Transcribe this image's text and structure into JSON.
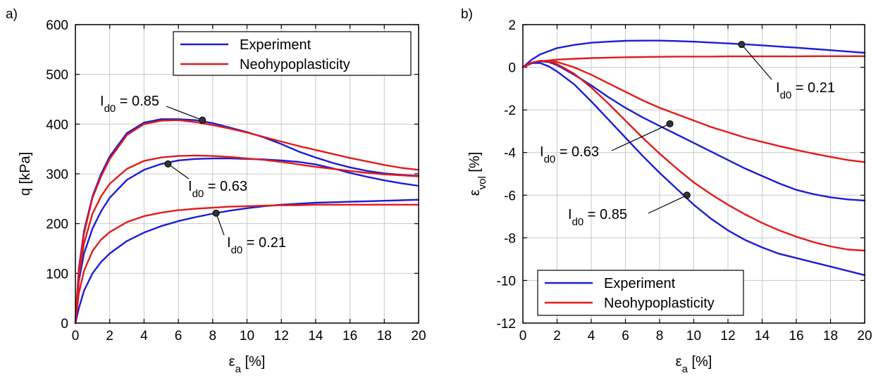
{
  "chart_data": [
    {
      "type": "line",
      "panel_label": "a)",
      "xlabel": "ε",
      "xlabel_sub": "a",
      "xlabel_unit": " [%]",
      "ylabel": "q [kPa]",
      "xlim": [
        0,
        20
      ],
      "ylim": [
        0,
        600
      ],
      "xticks": [
        "0",
        "2",
        "4",
        "6",
        "8",
        "10",
        "12",
        "14",
        "16",
        "18",
        "20"
      ],
      "yticks": [
        "0",
        "100",
        "200",
        "300",
        "400",
        "500",
        "600"
      ],
      "grid": true,
      "legend_position": "top-right",
      "legend": [
        "Experiment",
        "Neohypoplasticity"
      ],
      "colors": {
        "Experiment": "#1c1cd6",
        "Neohypoplasticity": "#e31a1a"
      },
      "series": [
        {
          "name": "Experiment",
          "id_label": "0.85",
          "x": [
            0,
            0.2,
            0.5,
            1,
            1.5,
            2,
            3,
            4,
            5,
            6,
            7,
            8,
            9,
            10,
            11,
            12,
            13,
            14,
            15,
            16,
            17,
            18,
            19,
            20
          ],
          "y": [
            0,
            110,
            185,
            255,
            300,
            335,
            382,
            403,
            410,
            410,
            408,
            402,
            393,
            384,
            373,
            360,
            345,
            333,
            322,
            313,
            306,
            301,
            298,
            296
          ]
        },
        {
          "name": "Neohypoplasticity",
          "id_label": "0.85",
          "x": [
            0,
            0.2,
            0.5,
            1,
            1.5,
            2,
            3,
            4,
            5,
            6,
            7,
            8,
            9,
            10,
            11,
            12,
            13,
            14,
            15,
            16,
            17,
            18,
            19,
            20
          ],
          "y": [
            0,
            105,
            180,
            252,
            295,
            330,
            378,
            400,
            407,
            408,
            404,
            398,
            391,
            383,
            374,
            365,
            356,
            348,
            340,
            332,
            325,
            318,
            312,
            308
          ]
        },
        {
          "name": "Experiment",
          "id_label": "0.63",
          "x": [
            0,
            0.2,
            0.5,
            1,
            1.5,
            2,
            3,
            4,
            5,
            6,
            7,
            8,
            9,
            10,
            11,
            12,
            13,
            14,
            15,
            16,
            17,
            18,
            19,
            20
          ],
          "y": [
            0,
            85,
            140,
            190,
            225,
            252,
            288,
            308,
            320,
            327,
            330,
            331,
            331,
            330,
            329,
            327,
            324,
            319,
            311,
            302,
            294,
            287,
            281,
            276
          ]
        },
        {
          "name": "Neohypoplasticity",
          "id_label": "0.63",
          "x": [
            0,
            0.2,
            0.5,
            1,
            1.5,
            2,
            3,
            4,
            5,
            6,
            7,
            8,
            9,
            10,
            11,
            12,
            13,
            14,
            15,
            16,
            17,
            18,
            19,
            20
          ],
          "y": [
            0,
            95,
            160,
            220,
            255,
            280,
            310,
            326,
            333,
            336,
            337,
            336,
            334,
            331,
            328,
            324,
            319,
            314,
            310,
            306,
            302,
            299,
            297,
            295
          ]
        },
        {
          "name": "Experiment",
          "id_label": "0.21",
          "x": [
            0,
            0.2,
            0.5,
            1,
            1.5,
            2,
            3,
            4,
            5,
            6,
            7,
            8,
            9,
            10,
            11,
            12,
            13,
            14,
            15,
            16,
            17,
            18,
            19,
            20
          ],
          "y": [
            0,
            30,
            65,
            100,
            123,
            140,
            165,
            182,
            195,
            205,
            213,
            220,
            226,
            231,
            235,
            238,
            240,
            242,
            243,
            244,
            245,
            246,
            247,
            248
          ]
        },
        {
          "name": "Neohypoplasticity",
          "id_label": "0.21",
          "x": [
            0,
            0.2,
            0.5,
            1,
            1.5,
            2,
            3,
            4,
            5,
            6,
            7,
            8,
            9,
            10,
            11,
            12,
            13,
            14,
            15,
            16,
            17,
            18,
            19,
            20
          ],
          "y": [
            0,
            60,
            105,
            145,
            168,
            183,
            203,
            215,
            222,
            227,
            230,
            232,
            234,
            235,
            236,
            237,
            237,
            238,
            238,
            238,
            238,
            238,
            238,
            238
          ]
        }
      ],
      "annotations": [
        {
          "label_prefix": "I",
          "label_sub": "d0",
          "text": "= 0.85",
          "point": [
            7.4,
            408
          ]
        },
        {
          "label_prefix": "I",
          "label_sub": "d0",
          "text": "= 0.63",
          "point": [
            5.4,
            320
          ]
        },
        {
          "label_prefix": "I",
          "label_sub": "d0",
          "text": "= 0.21",
          "point": [
            8.2,
            221
          ]
        }
      ]
    },
    {
      "type": "line",
      "panel_label": "b)",
      "xlabel": "ε",
      "xlabel_sub": "a",
      "xlabel_unit": " [%]",
      "ylabel": "ε",
      "ylabel_sub": "vol",
      "ylabel_unit": " [%]",
      "xlim": [
        0,
        20
      ],
      "ylim": [
        -12,
        2
      ],
      "xticks": [
        "0",
        "2",
        "4",
        "6",
        "8",
        "10",
        "12",
        "14",
        "16",
        "18",
        "20"
      ],
      "yticks": [
        "-12",
        "-10",
        "-8",
        "-6",
        "-4",
        "-2",
        "0",
        "2"
      ],
      "grid": true,
      "legend_position": "bottom-left",
      "legend": [
        "Experiment",
        "Neohypoplasticity"
      ],
      "colors": {
        "Experiment": "#1c1cd6",
        "Neohypoplasticity": "#e31a1a"
      },
      "series": [
        {
          "name": "Experiment",
          "id_label": "0.21",
          "x": [
            0,
            0.5,
            1,
            2,
            3,
            4,
            5,
            6,
            7,
            8,
            9,
            10,
            11,
            12,
            13,
            14,
            15,
            16,
            17,
            18,
            19,
            20
          ],
          "y": [
            0,
            0.35,
            0.6,
            0.9,
            1.05,
            1.15,
            1.2,
            1.24,
            1.25,
            1.25,
            1.23,
            1.2,
            1.16,
            1.12,
            1.08,
            1.03,
            0.97,
            0.92,
            0.86,
            0.8,
            0.74,
            0.68
          ]
        },
        {
          "name": "Neohypoplasticity",
          "id_label": "0.21",
          "x": [
            0,
            0.5,
            1,
            2,
            3,
            4,
            5,
            6,
            7,
            8,
            9,
            10,
            11,
            12,
            13,
            14,
            15,
            16,
            17,
            18,
            19,
            20
          ],
          "y": [
            0,
            0.18,
            0.28,
            0.36,
            0.4,
            0.43,
            0.45,
            0.47,
            0.48,
            0.49,
            0.5,
            0.5,
            0.5,
            0.51,
            0.51,
            0.51,
            0.51,
            0.51,
            0.52,
            0.52,
            0.52,
            0.52
          ]
        },
        {
          "name": "Experiment",
          "id_label": "0.63",
          "x": [
            0,
            0.5,
            1,
            1.5,
            2,
            3,
            4,
            5,
            6,
            7,
            8,
            9,
            10,
            11,
            12,
            13,
            14,
            15,
            16,
            17,
            18,
            19,
            20
          ],
          "y": [
            0,
            0.2,
            0.28,
            0.25,
            0.1,
            -0.35,
            -0.85,
            -1.4,
            -1.9,
            -2.35,
            -2.75,
            -3.15,
            -3.55,
            -3.95,
            -4.35,
            -4.75,
            -5.1,
            -5.45,
            -5.75,
            -5.95,
            -6.1,
            -6.2,
            -6.25
          ]
        },
        {
          "name": "Neohypoplasticity",
          "id_label": "0.63",
          "x": [
            0,
            0.5,
            1,
            1.5,
            2,
            3,
            4,
            5,
            6,
            7,
            8,
            9,
            10,
            11,
            12,
            13,
            14,
            15,
            16,
            17,
            18,
            19,
            20
          ],
          "y": [
            0,
            0.2,
            0.3,
            0.3,
            0.25,
            0,
            -0.35,
            -0.75,
            -1.15,
            -1.55,
            -1.9,
            -2.2,
            -2.5,
            -2.8,
            -3.05,
            -3.3,
            -3.5,
            -3.7,
            -3.88,
            -4.05,
            -4.2,
            -4.35,
            -4.45
          ]
        },
        {
          "name": "Experiment",
          "id_label": "0.85",
          "x": [
            0,
            0.5,
            1,
            1.5,
            2,
            3,
            4,
            5,
            6,
            7,
            8,
            9,
            10,
            11,
            12,
            13,
            14,
            15,
            16,
            17,
            18,
            19,
            20
          ],
          "y": [
            0,
            0.2,
            0.2,
            0.05,
            -0.2,
            -0.8,
            -1.6,
            -2.45,
            -3.3,
            -4.15,
            -4.95,
            -5.7,
            -6.45,
            -7.1,
            -7.65,
            -8.1,
            -8.45,
            -8.75,
            -8.95,
            -9.15,
            -9.35,
            -9.55,
            -9.75
          ]
        },
        {
          "name": "Neohypoplasticity",
          "id_label": "0.85",
          "x": [
            0,
            0.5,
            1,
            1.5,
            2,
            3,
            4,
            5,
            6,
            7,
            8,
            9,
            10,
            11,
            12,
            13,
            14,
            15,
            16,
            17,
            18,
            19,
            20
          ],
          "y": [
            0,
            0.22,
            0.3,
            0.28,
            0.15,
            -0.3,
            -0.95,
            -1.7,
            -2.5,
            -3.3,
            -4.05,
            -4.75,
            -5.4,
            -5.95,
            -6.45,
            -6.9,
            -7.3,
            -7.65,
            -7.95,
            -8.2,
            -8.4,
            -8.55,
            -8.6
          ]
        }
      ],
      "annotations": [
        {
          "label_prefix": "I",
          "label_sub": "d0",
          "text": "= 0.21",
          "point": [
            12.8,
            1.07
          ]
        },
        {
          "label_prefix": "I",
          "label_sub": "d0",
          "text": "= 0.63",
          "point": [
            8.6,
            -2.65
          ]
        },
        {
          "label_prefix": "I",
          "label_sub": "d0",
          "text": "= 0.85",
          "point": [
            9.6,
            -6.0
          ]
        }
      ]
    }
  ]
}
